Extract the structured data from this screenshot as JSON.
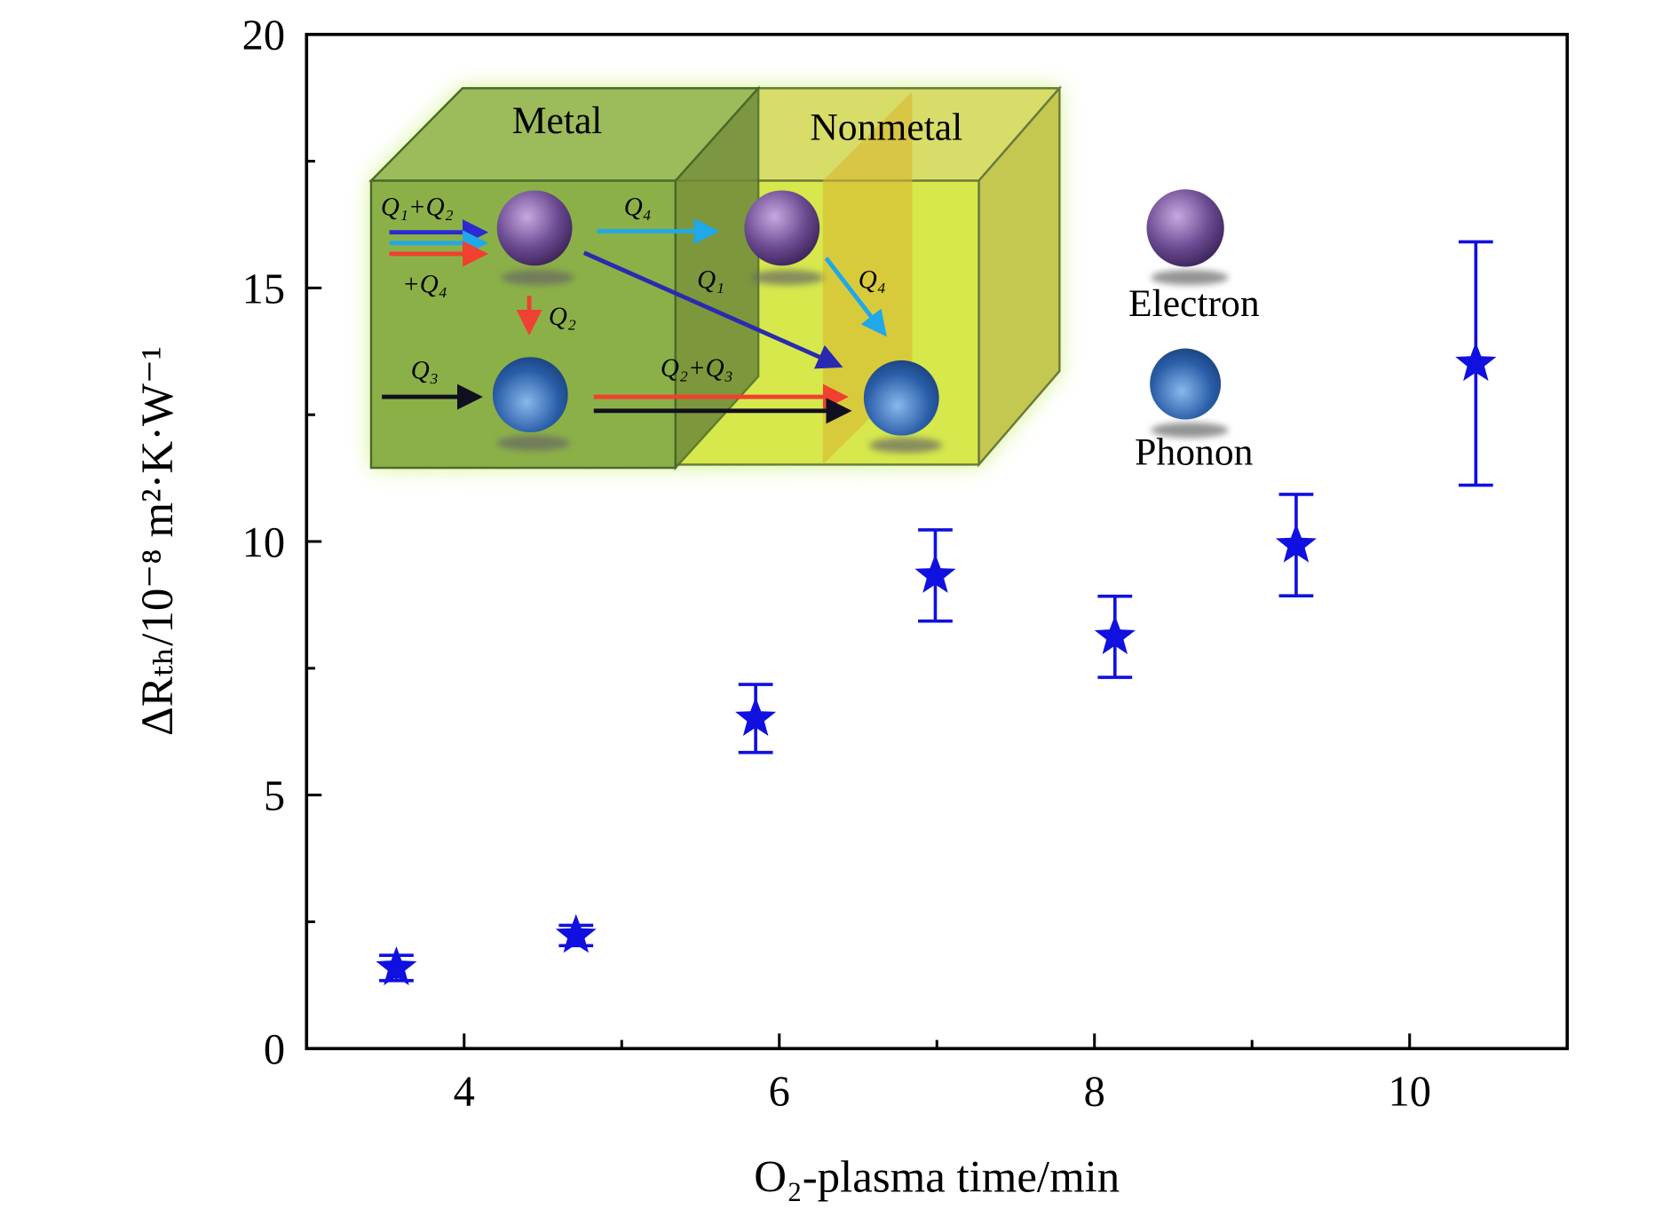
{
  "chart_data": {
    "type": "scatter",
    "x_label": "O₂-plasma time/min",
    "y_label": "ΔRₜₕ/10⁻⁸ m²·K·W⁻¹",
    "x": [
      3.57,
      4.71,
      5.85,
      6.99,
      8.13,
      9.28,
      10.42
    ],
    "values": [
      1.59,
      2.23,
      6.51,
      9.33,
      8.12,
      9.93,
      13.51
    ],
    "errors": [
      0.25,
      0.2,
      0.67,
      0.9,
      0.8,
      1.0,
      2.4
    ],
    "color": "#1010e0",
    "xlim": [
      3,
      11
    ],
    "ylim": [
      0,
      20
    ],
    "xticks": [
      4,
      6,
      8,
      10
    ],
    "xminorticks": [
      5,
      7,
      9
    ],
    "yticks": [
      0,
      5,
      10,
      15,
      20
    ],
    "yminorticks": [
      2.5,
      7.5,
      12.5,
      17.5
    ],
    "inset": {
      "metal": "Metal",
      "nonmetal": "Nonmetal",
      "electron": "Electron",
      "phonon": "Phonon",
      "q12_4a": "Q₁+Q₂",
      "q12_4b": "+Q₄",
      "q4_top": "Q₄",
      "q1": "Q₁",
      "q4_right": "Q₄",
      "q2": "Q₂",
      "q3": "Q₃",
      "q23": "Q₂+Q₃"
    }
  }
}
